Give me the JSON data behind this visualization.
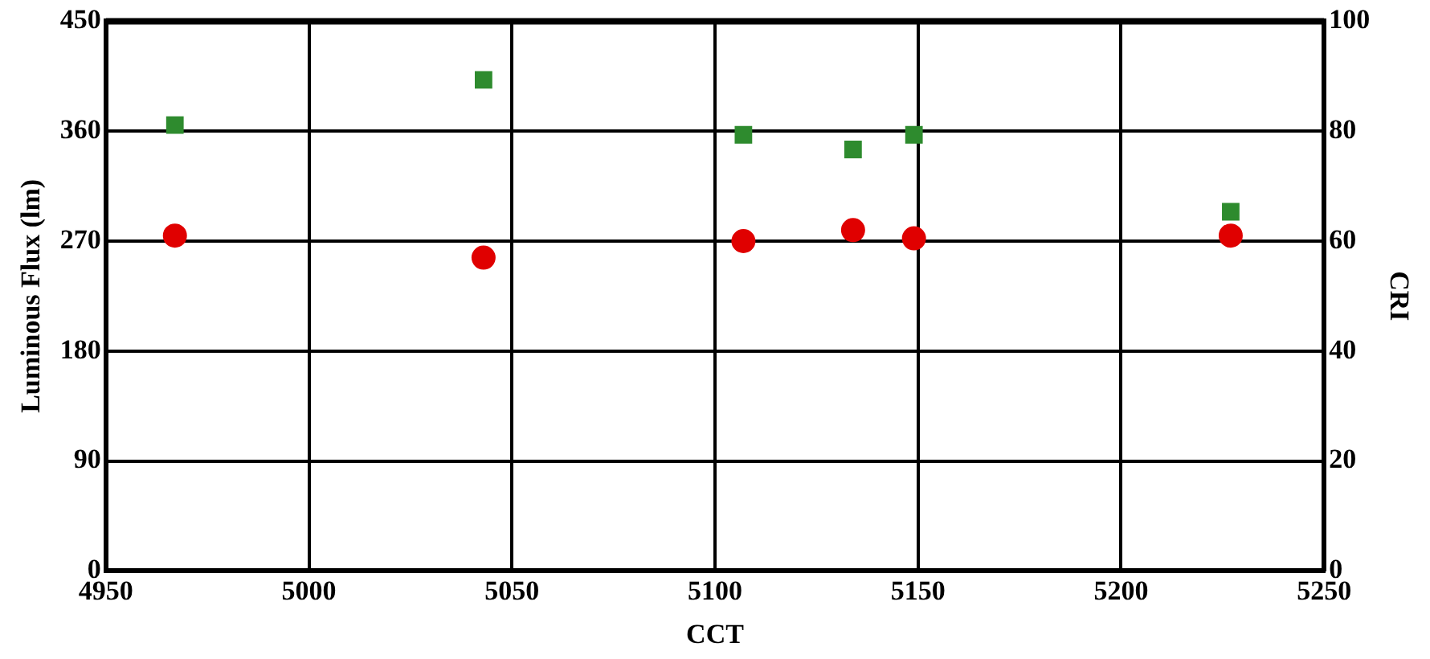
{
  "chart_data": {
    "type": "scatter",
    "xlabel": "CCT",
    "ylabel": "Luminous Flux (lm)",
    "y2label": "CRI",
    "xlim": [
      4950,
      5250
    ],
    "xticks": [
      4950,
      5000,
      5050,
      5100,
      5150,
      5200,
      5250
    ],
    "ylim": [
      0,
      450
    ],
    "yticks": [
      0,
      90,
      180,
      270,
      360,
      450
    ],
    "y2lim": [
      0,
      100
    ],
    "y2ticks": [
      0,
      20,
      40,
      60,
      80,
      100
    ],
    "grid": true,
    "legend": false,
    "series": [
      {
        "marker": "square",
        "color": "#2e8b2e",
        "x": [
          4967,
          5043,
          5107,
          5134,
          5149,
          5227
        ],
        "values": [
          365,
          402,
          357,
          345,
          357,
          294
        ]
      },
      {
        "marker": "circle",
        "color": "#e00000",
        "axis": "y2",
        "x": [
          4967,
          5043,
          5107,
          5134,
          5149,
          5227
        ],
        "values": [
          61,
          57,
          60,
          62,
          60.5,
          61
        ]
      }
    ]
  }
}
